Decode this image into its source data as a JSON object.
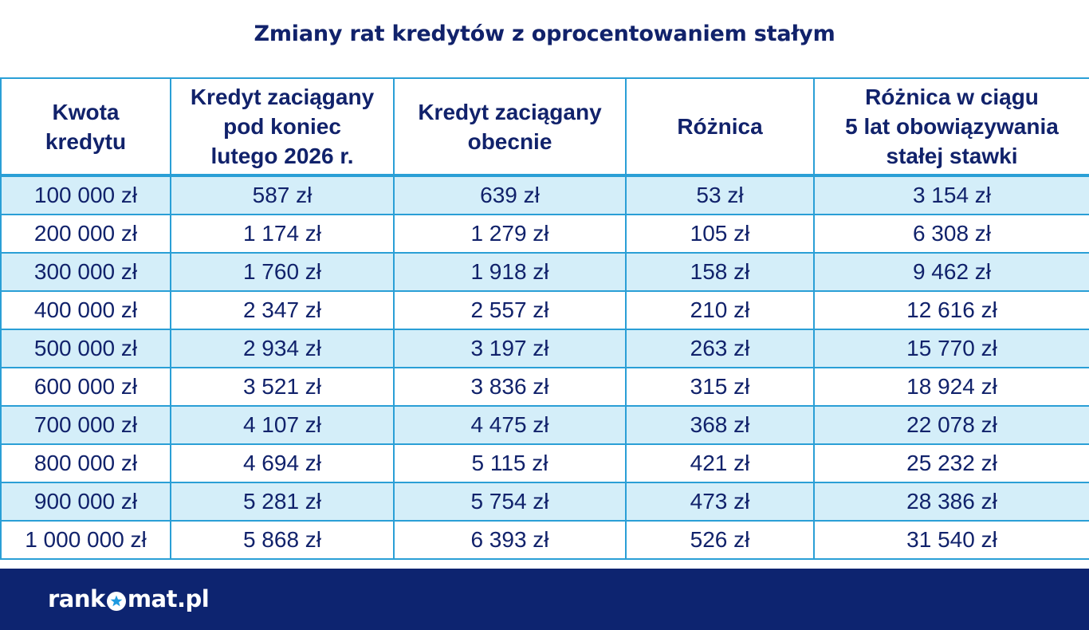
{
  "title": "Zmiany rat kredytów z oprocentowaniem stałym",
  "colors": {
    "title": "#11226b",
    "border": "#2a9fd6",
    "stripe": "#d4eef9",
    "footer": "#0d2470"
  },
  "chart_data": {
    "type": "table",
    "title": "Zmiany rat kredytów z oprocentowaniem stałym",
    "columns": [
      [
        "Kwota",
        "kredytu"
      ],
      [
        "Kredyt zaciągany",
        "pod koniec",
        "lutego 2026 r."
      ],
      [
        "Kredyt zaciągany",
        "obecnie"
      ],
      [
        "Różnica"
      ],
      [
        "Różnica w ciągu",
        "5 lat obowiązywania",
        "stałej stawki"
      ]
    ],
    "rows": [
      [
        "100 000 zł",
        "587 zł",
        "639 zł",
        "53 zł",
        "3 154 zł"
      ],
      [
        "200 000 zł",
        "1 174 zł",
        "1 279 zł",
        "105 zł",
        "6 308 zł"
      ],
      [
        "300 000 zł",
        "1 760 zł",
        "1 918 zł",
        "158 zł",
        "9 462 zł"
      ],
      [
        "400 000 zł",
        "2 347 zł",
        "2 557 zł",
        "210 zł",
        "12 616 zł"
      ],
      [
        "500 000 zł",
        "2 934 zł",
        "3 197 zł",
        "263 zł",
        "15 770 zł"
      ],
      [
        "600 000 zł",
        "3 521 zł",
        "3 836 zł",
        "315 zł",
        "18 924 zł"
      ],
      [
        "700 000 zł",
        "4 107 zł",
        "4 475 zł",
        "368 zł",
        "22 078 zł"
      ],
      [
        "800 000 zł",
        "4 694 zł",
        "5 115 zł",
        "421 zł",
        "25 232 zł"
      ],
      [
        "900 000 zł",
        "5 281 zł",
        "5 754 zł",
        "473 zł",
        "28 386 zł"
      ],
      [
        "1 000 000 zł",
        "5 868 zł",
        "6 393 zł",
        "526 zł",
        "31 540 zł"
      ]
    ]
  },
  "footer": {
    "logo_left": "rank",
    "logo_right": "mat.pl",
    "logo_icon": "star-circle-icon"
  }
}
